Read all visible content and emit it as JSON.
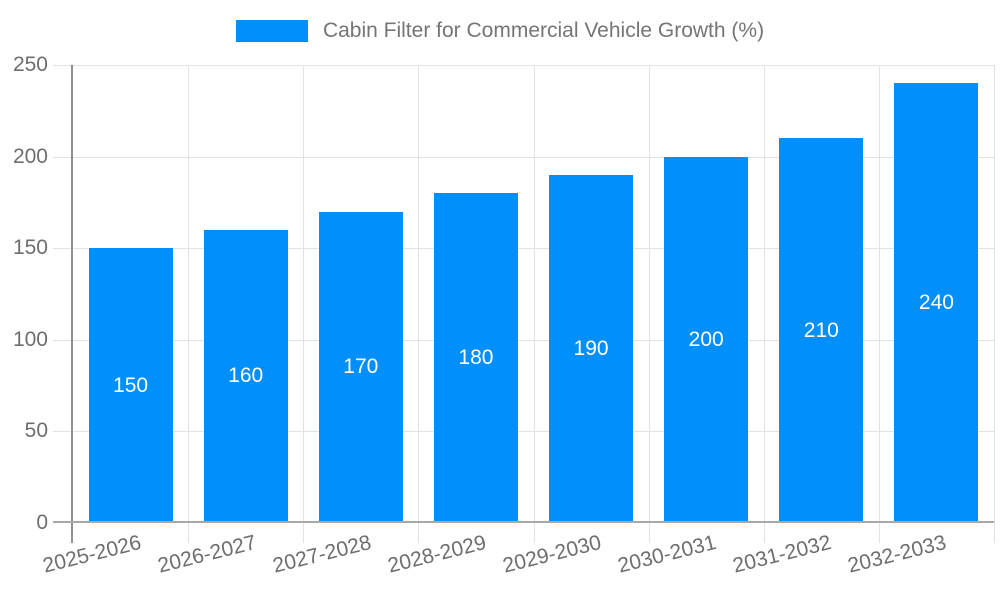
{
  "chart_data": {
    "type": "bar",
    "title": "",
    "legend": {
      "label": "Cabin Filter for Commercial Vehicle Growth (%)",
      "position": "top"
    },
    "categories": [
      "2025-2026",
      "2026-2027",
      "2027-2028",
      "2028-2029",
      "2029-2030",
      "2030-2031",
      "2031-2032",
      "2032-2033"
    ],
    "series": [
      {
        "name": "Cabin Filter for Commercial Vehicle Growth (%)",
        "values": [
          150,
          160,
          170,
          180,
          190,
          200,
          210,
          240
        ]
      }
    ],
    "bar_value_labels": [
      "150",
      "160",
      "170",
      "180",
      "190",
      "200",
      "210",
      "240"
    ],
    "xlabel": "",
    "ylabel": "",
    "ylim": [
      0,
      250
    ],
    "yticks": [
      0,
      50,
      100,
      150,
      200,
      250
    ],
    "grid": true,
    "x_label_rotation_deg": -14,
    "colors": {
      "bar": "#008FFB",
      "grid": "#e2e2e2",
      "axis_y": "#8f8f8f",
      "axis_x": "#a8a8a8",
      "tick_text": "#6e6e6e",
      "legend_text": "#757575",
      "bar_label_text": "#ffffff",
      "background": "#ffffff"
    }
  }
}
